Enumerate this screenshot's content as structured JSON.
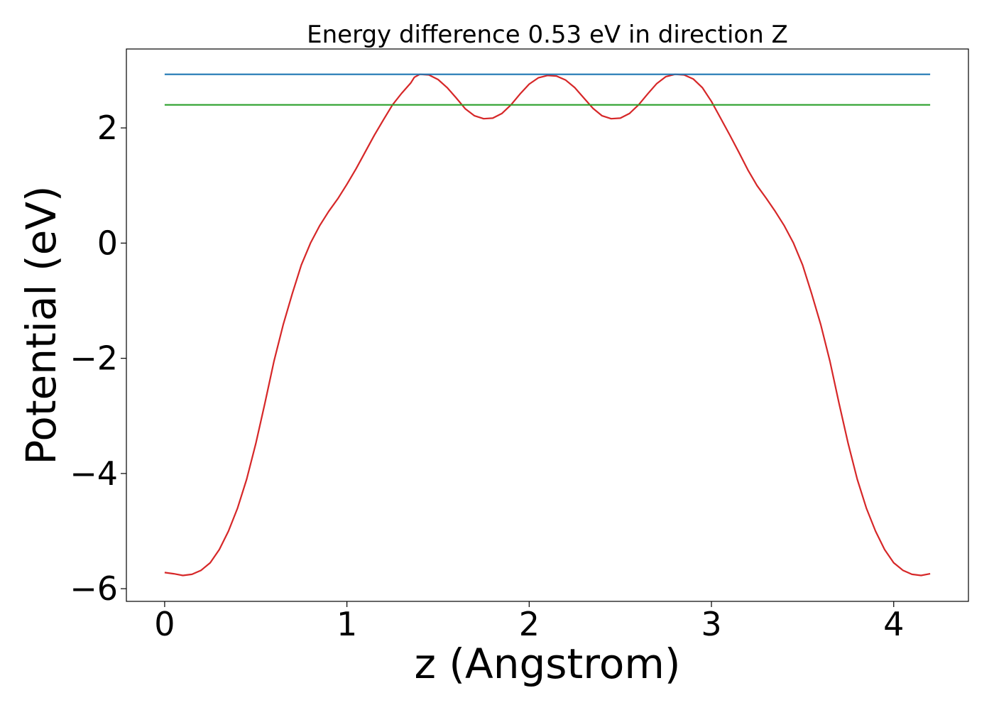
{
  "chart_data": {
    "type": "line",
    "title": "Energy difference 0.53 eV in direction Z",
    "xlabel": "z (Angstrom)",
    "ylabel": "Potential (eV)",
    "xlim": [
      -0.21,
      4.41
    ],
    "ylim": [
      -6.22,
      3.37
    ],
    "x_ticks": [
      0,
      1,
      2,
      3,
      4
    ],
    "y_ticks": [
      -6,
      -4,
      -2,
      0,
      2
    ],
    "x_tick_labels": [
      "0",
      "1",
      "2",
      "3",
      "4"
    ],
    "y_tick_labels": [
      "−6",
      "−4",
      "−2",
      "0",
      "2"
    ],
    "grid": false,
    "legend": false,
    "series": [
      {
        "color": "#d62728",
        "x": [
          0.0,
          0.05,
          0.1,
          0.15,
          0.2,
          0.25,
          0.3,
          0.35,
          0.4,
          0.45,
          0.5,
          0.55,
          0.6,
          0.65,
          0.7,
          0.75,
          0.8,
          0.85,
          0.9,
          0.95,
          1.0,
          1.05,
          1.1,
          1.15,
          1.2,
          1.25,
          1.3,
          1.35,
          1.37,
          1.4,
          1.45,
          1.5,
          1.55,
          1.6,
          1.65,
          1.7,
          1.75,
          1.8,
          1.85,
          1.9,
          1.95,
          2.0,
          2.05,
          2.1,
          2.15,
          2.2,
          2.25,
          2.3,
          2.35,
          2.4,
          2.45,
          2.5,
          2.55,
          2.6,
          2.65,
          2.7,
          2.75,
          2.8,
          2.85,
          2.9,
          2.95,
          3.0,
          3.05,
          3.1,
          3.15,
          3.2,
          3.25,
          3.3,
          3.35,
          3.4,
          3.45,
          3.5,
          3.55,
          3.6,
          3.65,
          3.7,
          3.75,
          3.8,
          3.85,
          3.9,
          3.95,
          4.0,
          4.05,
          4.1,
          4.15,
          4.2
        ],
        "y": [
          -5.72,
          -5.74,
          -5.77,
          -5.75,
          -5.68,
          -5.55,
          -5.32,
          -5.0,
          -4.6,
          -4.1,
          -3.48,
          -2.78,
          -2.05,
          -1.42,
          -0.88,
          -0.38,
          0.0,
          0.3,
          0.55,
          0.77,
          1.02,
          1.29,
          1.58,
          1.87,
          2.14,
          2.4,
          2.6,
          2.78,
          2.88,
          2.93,
          2.92,
          2.84,
          2.7,
          2.52,
          2.33,
          2.21,
          2.16,
          2.17,
          2.25,
          2.4,
          2.59,
          2.76,
          2.87,
          2.91,
          2.9,
          2.83,
          2.7,
          2.52,
          2.34,
          2.21,
          2.16,
          2.17,
          2.25,
          2.4,
          2.59,
          2.77,
          2.89,
          2.93,
          2.92,
          2.85,
          2.7,
          2.46,
          2.17,
          1.88,
          1.58,
          1.27,
          1.0,
          0.78,
          0.55,
          0.3,
          0.0,
          -0.38,
          -0.88,
          -1.42,
          -2.05,
          -2.78,
          -3.48,
          -4.1,
          -4.6,
          -5.0,
          -5.32,
          -5.55,
          -5.68,
          -5.75,
          -5.77,
          -5.74
        ]
      },
      {
        "color": "#1f77b4",
        "x": [
          0.0,
          4.2
        ],
        "y": [
          2.93,
          2.93
        ]
      },
      {
        "color": "#2ca02c",
        "x": [
          0.0,
          4.2
        ],
        "y": [
          2.4,
          2.4
        ]
      }
    ]
  }
}
